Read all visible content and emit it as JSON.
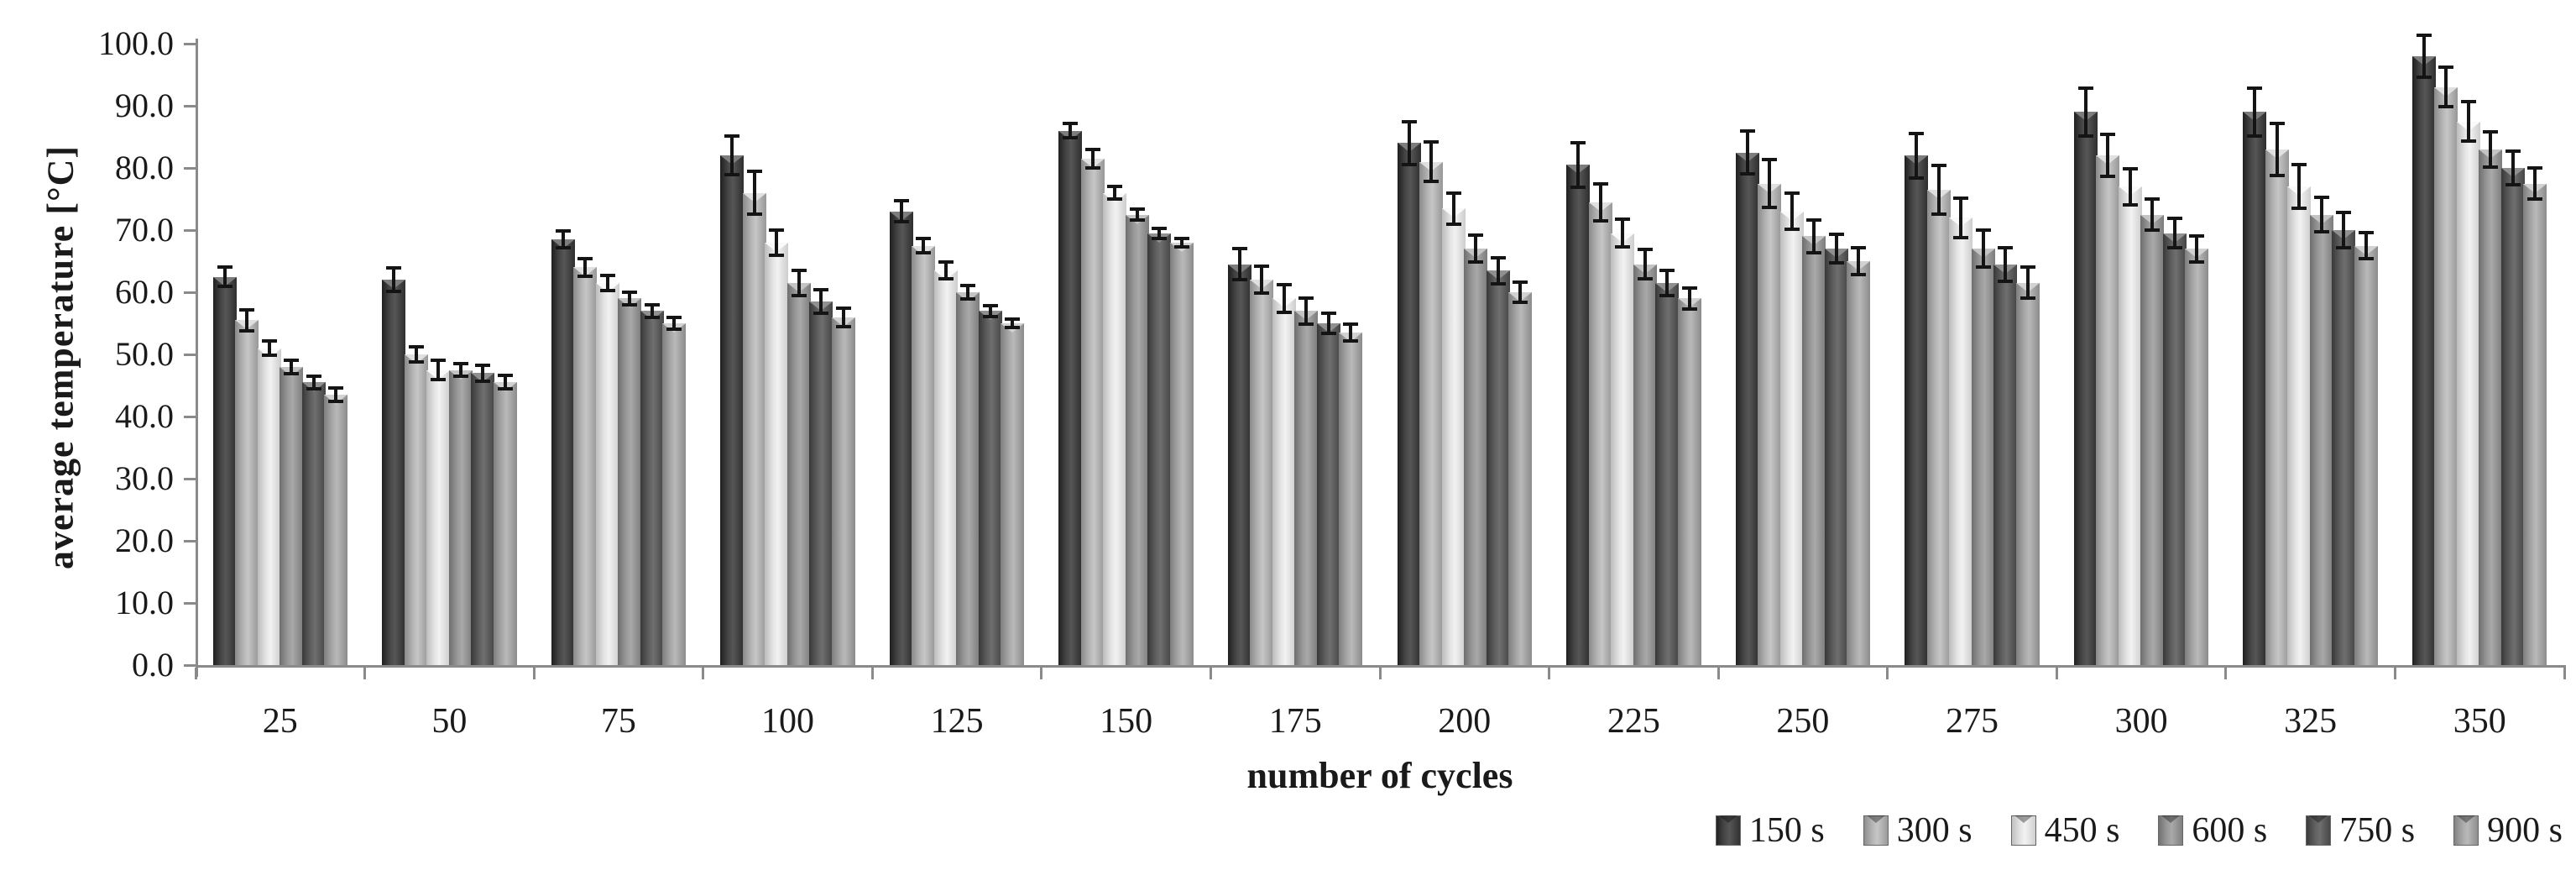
{
  "chart_data": {
    "type": "bar",
    "title": "",
    "xlabel": "number of cycles",
    "ylabel": "average temperature [°C]",
    "ylim": [
      0,
      100
    ],
    "ytick_step": 10,
    "ytick_labels": [
      "0.0",
      "10.0",
      "20.0",
      "30.0",
      "40.0",
      "50.0",
      "60.0",
      "70.0",
      "80.0",
      "90.0",
      "100.0"
    ],
    "grid": false,
    "error_bars": true,
    "legend_position": "bottom-right",
    "categories": [
      "25",
      "50",
      "75",
      "100",
      "125",
      "150",
      "175",
      "200",
      "225",
      "250",
      "275",
      "300",
      "325",
      "350"
    ],
    "series": [
      {
        "name": "150 s",
        "color": "#3f3f3f",
        "values": [
          62.5,
          62,
          68.5,
          82,
          73,
          86,
          64.5,
          84,
          80.5,
          82.5,
          82,
          89,
          89,
          98
        ],
        "errors": [
          1.5,
          1.9,
          1.3,
          3.1,
          1.7,
          1.2,
          2.5,
          3.5,
          3.6,
          3.5,
          3.6,
          3.9,
          3.8,
          3.4
        ]
      },
      {
        "name": "300 s",
        "color": "#a6a6a6",
        "values": [
          55.5,
          50,
          64,
          76,
          67.5,
          81.5,
          62,
          81,
          74.5,
          77.5,
          76.5,
          82,
          83,
          93
        ],
        "errors": [
          1.7,
          1.2,
          1.4,
          3.4,
          1.2,
          1.5,
          2.2,
          3.2,
          3.0,
          3.8,
          3.9,
          3.4,
          4.2,
          3.2
        ]
      },
      {
        "name": "450 s",
        "color": "#d9d9d9",
        "values": [
          51,
          47.5,
          61.5,
          68,
          63.5,
          76,
          59,
          73.5,
          69.5,
          73,
          72,
          77,
          77,
          87.5
        ],
        "errors": [
          1.2,
          1.6,
          1.2,
          2.0,
          1.4,
          1.0,
          2.2,
          2.5,
          2.2,
          2.9,
          3.2,
          2.9,
          3.5,
          3.2
        ]
      },
      {
        "name": "600 s",
        "color": "#8c8c8c",
        "values": [
          48,
          47.5,
          59,
          61.5,
          60,
          72.5,
          57,
          67,
          64.5,
          69,
          67,
          72.5,
          72.5,
          83
        ],
        "errors": [
          1.1,
          1.0,
          1.0,
          2.0,
          1.1,
          0.9,
          2.1,
          2.2,
          2.4,
          2.6,
          3.0,
          2.5,
          2.8,
          2.8
        ]
      },
      {
        "name": "750 s",
        "color": "#545454",
        "values": [
          45.5,
          47,
          57,
          58.5,
          57,
          69.5,
          55,
          63.5,
          61.5,
          67,
          64.5,
          69.5,
          70,
          80
        ],
        "errors": [
          1.0,
          1.3,
          1.0,
          1.9,
          0.9,
          0.8,
          1.6,
          2.1,
          2.0,
          2.3,
          2.7,
          2.4,
          2.8,
          2.7
        ]
      },
      {
        "name": "900 s",
        "color": "#9b9b9b",
        "values": [
          43.5,
          45.5,
          55,
          56,
          55,
          68,
          53.5,
          60,
          59,
          65,
          61.5,
          67,
          67.5,
          77.5
        ],
        "errors": [
          1.1,
          1.1,
          1.0,
          1.5,
          0.7,
          0.7,
          1.4,
          1.6,
          1.7,
          2.1,
          2.5,
          2.1,
          2.1,
          2.5
        ]
      }
    ]
  }
}
